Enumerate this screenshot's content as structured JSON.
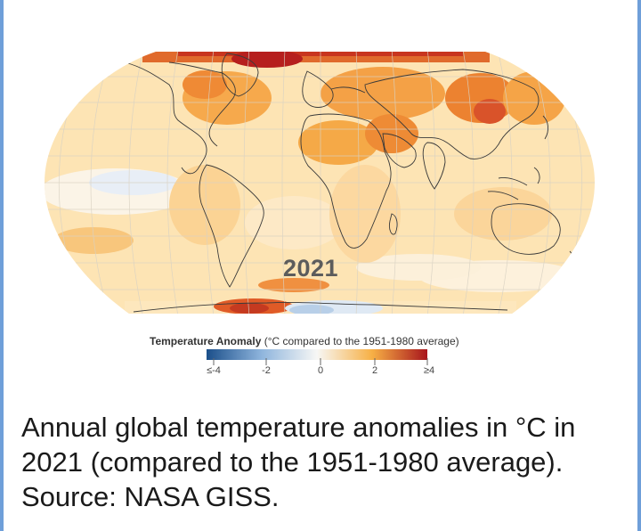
{
  "map": {
    "year": "2021",
    "legend": {
      "title_bold": "Temperature Anomaly",
      "title_rest": " (°C compared to the 1951-1980 average)",
      "ticks": [
        "≤-4",
        "-2",
        "0",
        "2",
        "≥4"
      ],
      "colors": {
        "cold_extreme": "#1b4f8a",
        "cold": "#8fb5dd",
        "neutral": "#f7f7f5",
        "warm": "#f7b045",
        "hot_extreme": "#a8151c"
      }
    }
  },
  "caption": {
    "text": "Annual global temperature anomalies in °C in 2021 (compared to the 1951-1980 average). Source: NASA GISS."
  }
}
